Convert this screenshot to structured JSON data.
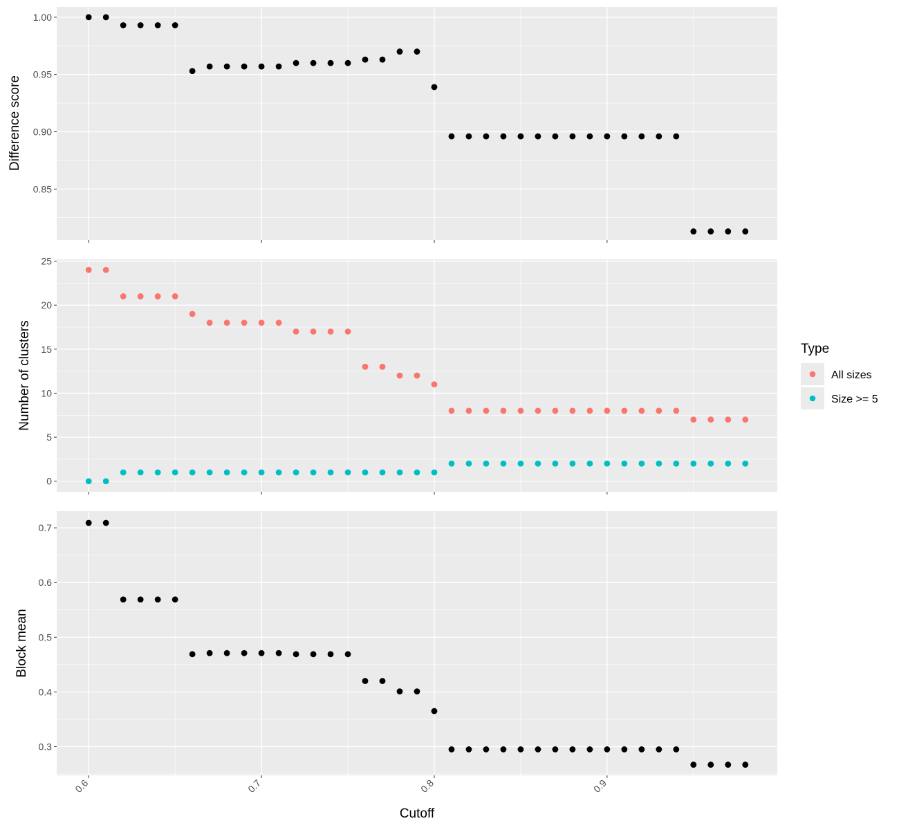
{
  "colors": {
    "panel_bg": "#EBEBEB",
    "grid_major": "#FFFFFF",
    "tick": "#333333",
    "point_default": "#000000",
    "all_sizes": "#F8766D",
    "size_ge_5": "#00BFC4"
  },
  "legend": {
    "title": "Type",
    "entries": [
      {
        "label": "All sizes",
        "color": "#F8766D"
      },
      {
        "label": "Size >= 5",
        "color": "#00BFC4"
      }
    ],
    "placement": "right"
  },
  "chart_data": [
    {
      "type": "scatter",
      "panel": "top",
      "title": "",
      "xlabel": "",
      "ylabel": "Difference score",
      "xlim": [
        0.5815,
        0.9985
      ],
      "ylim": [
        0.8055,
        1.009
      ],
      "yticks": [
        0.85,
        0.9,
        0.95,
        1.0
      ],
      "yticklabels": [
        "0.85",
        "0.90",
        "0.95",
        "1.00"
      ],
      "grid": true,
      "x": [
        0.6,
        0.61,
        0.62,
        0.63,
        0.64,
        0.65,
        0.66,
        0.67,
        0.68,
        0.69,
        0.7,
        0.71,
        0.72,
        0.73,
        0.74,
        0.75,
        0.76,
        0.77,
        0.78,
        0.79,
        0.8,
        0.81,
        0.82,
        0.83,
        0.84,
        0.85,
        0.86,
        0.87,
        0.88,
        0.89,
        0.9,
        0.91,
        0.92,
        0.93,
        0.94,
        0.95,
        0.96,
        0.97,
        0.98
      ],
      "series": [
        {
          "values": [
            1.0,
            1.0,
            0.993,
            0.993,
            0.993,
            0.993,
            0.953,
            0.957,
            0.957,
            0.957,
            0.957,
            0.957,
            0.96,
            0.96,
            0.96,
            0.96,
            0.963,
            0.963,
            0.97,
            0.97,
            0.939,
            0.896,
            0.896,
            0.896,
            0.896,
            0.896,
            0.896,
            0.896,
            0.896,
            0.896,
            0.896,
            0.896,
            0.896,
            0.896,
            0.896,
            0.813,
            0.813,
            0.813,
            0.813
          ],
          "color": "#000000"
        }
      ]
    },
    {
      "type": "scatter",
      "panel": "middle",
      "title": "",
      "xlabel": "",
      "ylabel": "Number of clusters",
      "xlim": [
        0.5815,
        0.9985
      ],
      "ylim": [
        -1.2,
        25.2
      ],
      "yticks": [
        0,
        5,
        10,
        15,
        20,
        25
      ],
      "yticklabels": [
        "0",
        "5",
        "10",
        "15",
        "20",
        "25"
      ],
      "grid": true,
      "x": [
        0.6,
        0.61,
        0.62,
        0.63,
        0.64,
        0.65,
        0.66,
        0.67,
        0.68,
        0.69,
        0.7,
        0.71,
        0.72,
        0.73,
        0.74,
        0.75,
        0.76,
        0.77,
        0.78,
        0.79,
        0.8,
        0.81,
        0.82,
        0.83,
        0.84,
        0.85,
        0.86,
        0.87,
        0.88,
        0.89,
        0.9,
        0.91,
        0.92,
        0.93,
        0.94,
        0.95,
        0.96,
        0.97,
        0.98
      ],
      "series": [
        {
          "name": "All sizes",
          "color": "#F8766D",
          "values": [
            24,
            24,
            21,
            21,
            21,
            21,
            19,
            18,
            18,
            18,
            18,
            18,
            17,
            17,
            17,
            17,
            13,
            13,
            12,
            12,
            11,
            8,
            8,
            8,
            8,
            8,
            8,
            8,
            8,
            8,
            8,
            8,
            8,
            8,
            8,
            7,
            7,
            7,
            7
          ]
        },
        {
          "name": "Size >= 5",
          "color": "#00BFC4",
          "values": [
            0,
            0,
            1,
            1,
            1,
            1,
            1,
            1,
            1,
            1,
            1,
            1,
            1,
            1,
            1,
            1,
            1,
            1,
            1,
            1,
            1,
            2,
            2,
            2,
            2,
            2,
            2,
            2,
            2,
            2,
            2,
            2,
            2,
            2,
            2,
            2,
            2,
            2,
            2
          ]
        }
      ]
    },
    {
      "type": "scatter",
      "panel": "bottom",
      "title": "",
      "xlabel": "Cutoff",
      "ylabel": "Block mean",
      "xlim": [
        0.5815,
        0.9985
      ],
      "ylim": [
        0.2475,
        0.7305
      ],
      "xticks": [
        0.6,
        0.7,
        0.8,
        0.9
      ],
      "xticklabels": [
        "0.6",
        "0.7",
        "0.8",
        "0.9"
      ],
      "yticks": [
        0.3,
        0.4,
        0.5,
        0.6,
        0.7
      ],
      "yticklabels": [
        "0.3",
        "0.4",
        "0.5",
        "0.6",
        "0.7"
      ],
      "grid": true,
      "x": [
        0.6,
        0.61,
        0.62,
        0.63,
        0.64,
        0.65,
        0.66,
        0.67,
        0.68,
        0.69,
        0.7,
        0.71,
        0.72,
        0.73,
        0.74,
        0.75,
        0.76,
        0.77,
        0.78,
        0.79,
        0.8,
        0.81,
        0.82,
        0.83,
        0.84,
        0.85,
        0.86,
        0.87,
        0.88,
        0.89,
        0.9,
        0.91,
        0.92,
        0.93,
        0.94,
        0.95,
        0.96,
        0.97,
        0.98
      ],
      "series": [
        {
          "values": [
            0.709,
            0.709,
            0.569,
            0.569,
            0.569,
            0.569,
            0.469,
            0.471,
            0.471,
            0.471,
            0.471,
            0.471,
            0.469,
            0.469,
            0.469,
            0.469,
            0.42,
            0.42,
            0.401,
            0.401,
            0.365,
            0.295,
            0.295,
            0.295,
            0.295,
            0.295,
            0.295,
            0.295,
            0.295,
            0.295,
            0.295,
            0.295,
            0.295,
            0.295,
            0.295,
            0.267,
            0.267,
            0.267,
            0.267
          ],
          "color": "#000000"
        }
      ]
    }
  ]
}
